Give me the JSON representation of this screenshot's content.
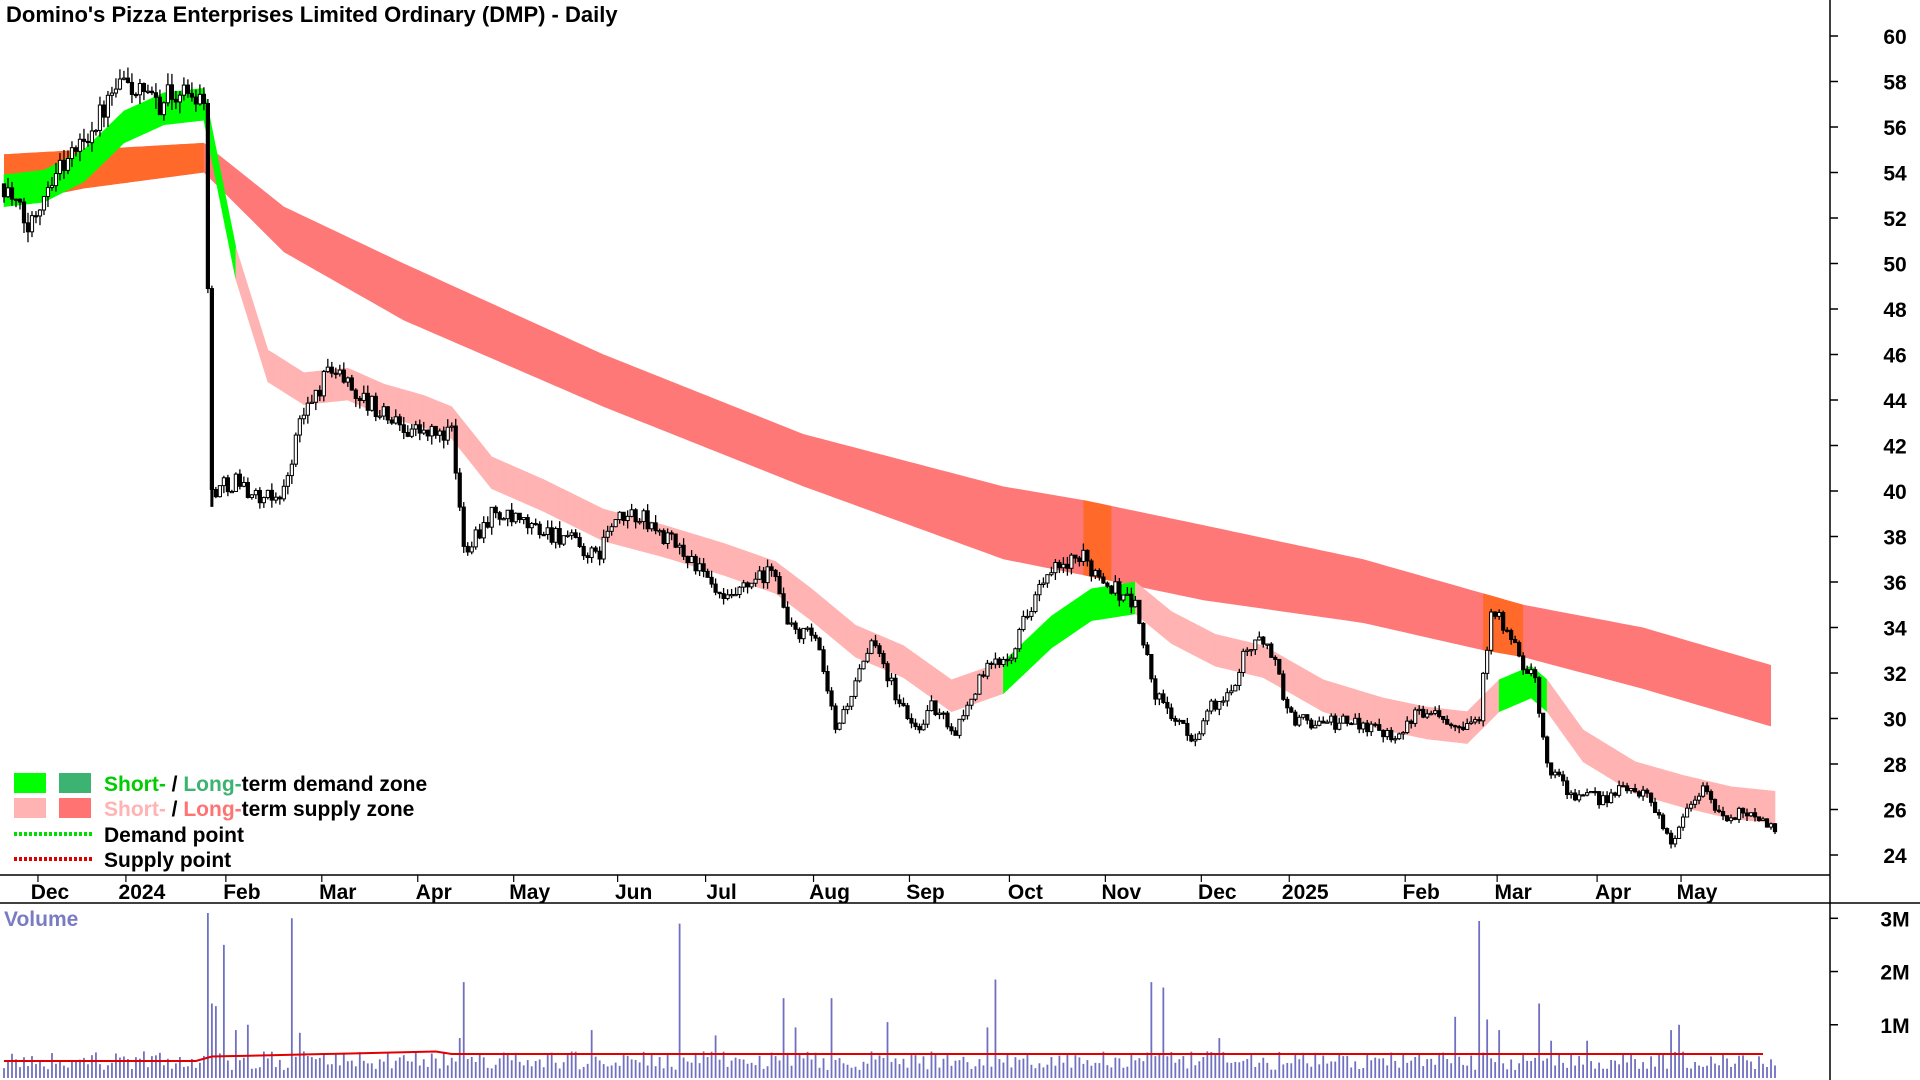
{
  "chart_data": {
    "type": "candlestick",
    "title": "Domino's Pizza Enterprises Limited Ordinary (DMP) - Daily",
    "y_axis": {
      "ticks": [
        24,
        26,
        28,
        30,
        32,
        34,
        36,
        38,
        40,
        42,
        44,
        46,
        48,
        50,
        52,
        54,
        56,
        58,
        60
      ],
      "range": [
        23,
        61
      ],
      "position": "right"
    },
    "x_axis": {
      "ticks": [
        "Dec",
        "2024",
        "Feb",
        "Mar",
        "Apr",
        "May",
        "Jun",
        "Jul",
        "Aug",
        "Sep",
        "Oct",
        "Nov",
        "Dec",
        "2025",
        "Feb",
        "Mar",
        "Apr",
        "May"
      ]
    },
    "price_path": [
      {
        "d": 0,
        "p": 53.5
      },
      {
        "d": 6,
        "p": 51.5
      },
      {
        "d": 12,
        "p": 54
      },
      {
        "d": 18,
        "p": 55
      },
      {
        "d": 24,
        "p": 56.5
      },
      {
        "d": 30,
        "p": 58
      },
      {
        "d": 37,
        "p": 57
      },
      {
        "d": 43,
        "p": 57.5
      },
      {
        "d": 50,
        "p": 57.5
      },
      {
        "d": 52,
        "p": 40
      },
      {
        "d": 58,
        "p": 40.5
      },
      {
        "d": 65,
        "p": 39.5
      },
      {
        "d": 70,
        "p": 40
      },
      {
        "d": 74,
        "p": 43
      },
      {
        "d": 82,
        "p": 45.5
      },
      {
        "d": 90,
        "p": 44
      },
      {
        "d": 98,
        "p": 43
      },
      {
        "d": 106,
        "p": 42.5
      },
      {
        "d": 112,
        "p": 42.5
      },
      {
        "d": 115,
        "p": 37.5
      },
      {
        "d": 122,
        "p": 39
      },
      {
        "d": 130,
        "p": 38.5
      },
      {
        "d": 140,
        "p": 38
      },
      {
        "d": 148,
        "p": 37
      },
      {
        "d": 152,
        "p": 38.5
      },
      {
        "d": 158,
        "p": 39
      },
      {
        "d": 165,
        "p": 38
      },
      {
        "d": 172,
        "p": 37
      },
      {
        "d": 180,
        "p": 35
      },
      {
        "d": 188,
        "p": 36
      },
      {
        "d": 193,
        "p": 36.5
      },
      {
        "d": 196,
        "p": 34
      },
      {
        "d": 203,
        "p": 33.5
      },
      {
        "d": 208,
        "p": 29.5
      },
      {
        "d": 213,
        "p": 31.5
      },
      {
        "d": 218,
        "p": 33.5
      },
      {
        "d": 223,
        "p": 31
      },
      {
        "d": 228,
        "p": 29.5
      },
      {
        "d": 232,
        "p": 30.5
      },
      {
        "d": 238,
        "p": 29.5
      },
      {
        "d": 245,
        "p": 32
      },
      {
        "d": 252,
        "p": 33
      },
      {
        "d": 258,
        "p": 35.5
      },
      {
        "d": 263,
        "p": 36.5
      },
      {
        "d": 270,
        "p": 37
      },
      {
        "d": 276,
        "p": 36
      },
      {
        "d": 283,
        "p": 35
      },
      {
        "d": 288,
        "p": 31
      },
      {
        "d": 293,
        "p": 30
      },
      {
        "d": 297,
        "p": 29
      },
      {
        "d": 302,
        "p": 30.5
      },
      {
        "d": 307,
        "p": 31
      },
      {
        "d": 310,
        "p": 33
      },
      {
        "d": 316,
        "p": 33.5
      },
      {
        "d": 322,
        "p": 30
      },
      {
        "d": 330,
        "p": 29.8
      },
      {
        "d": 340,
        "p": 29.8
      },
      {
        "d": 348,
        "p": 29.3
      },
      {
        "d": 356,
        "p": 30.5
      },
      {
        "d": 364,
        "p": 29.8
      },
      {
        "d": 369,
        "p": 30
      },
      {
        "d": 372,
        "p": 35
      },
      {
        "d": 378,
        "p": 33
      },
      {
        "d": 383,
        "p": 31.5
      },
      {
        "d": 386,
        "p": 28
      },
      {
        "d": 393,
        "p": 26.5
      },
      {
        "d": 400,
        "p": 26.5
      },
      {
        "d": 407,
        "p": 27
      },
      {
        "d": 412,
        "p": 26.5
      },
      {
        "d": 417,
        "p": 24.5
      },
      {
        "d": 421,
        "p": 26
      },
      {
        "d": 425,
        "p": 27
      },
      {
        "d": 430,
        "p": 25.5
      },
      {
        "d": 437,
        "p": 26
      },
      {
        "d": 443,
        "p": 25
      }
    ],
    "short_term_zone": [
      {
        "d": 0,
        "p": 53.2,
        "z": "demand"
      },
      {
        "d": 10,
        "p": 53.4,
        "z": "demand"
      },
      {
        "d": 20,
        "p": 54.3,
        "z": "demand"
      },
      {
        "d": 30,
        "p": 56,
        "z": "demand"
      },
      {
        "d": 40,
        "p": 56.8,
        "z": "demand"
      },
      {
        "d": 50,
        "p": 57,
        "z": "demand"
      },
      {
        "d": 58,
        "p": 50,
        "z": "supply"
      },
      {
        "d": 66,
        "p": 45.5,
        "z": "supply"
      },
      {
        "d": 75,
        "p": 44.5,
        "z": "supply"
      },
      {
        "d": 86,
        "p": 44.7,
        "z": "supply"
      },
      {
        "d": 95,
        "p": 44,
        "z": "supply"
      },
      {
        "d": 105,
        "p": 43.5,
        "z": "supply"
      },
      {
        "d": 112,
        "p": 43,
        "z": "supply"
      },
      {
        "d": 122,
        "p": 40.8,
        "z": "supply"
      },
      {
        "d": 135,
        "p": 39.8,
        "z": "supply"
      },
      {
        "d": 150,
        "p": 38.5,
        "z": "supply"
      },
      {
        "d": 165,
        "p": 37.8,
        "z": "supply"
      },
      {
        "d": 180,
        "p": 37,
        "z": "supply"
      },
      {
        "d": 193,
        "p": 36.2,
        "z": "supply"
      },
      {
        "d": 202,
        "p": 35,
        "z": "supply"
      },
      {
        "d": 213,
        "p": 33.4,
        "z": "supply"
      },
      {
        "d": 225,
        "p": 32.5,
        "z": "supply"
      },
      {
        "d": 237,
        "p": 31,
        "z": "supply"
      },
      {
        "d": 250,
        "p": 31.8,
        "z": "demand"
      },
      {
        "d": 262,
        "p": 33.8,
        "z": "demand"
      },
      {
        "d": 272,
        "p": 35,
        "z": "demand"
      },
      {
        "d": 283,
        "p": 35.3,
        "z": "supply"
      },
      {
        "d": 292,
        "p": 34,
        "z": "supply"
      },
      {
        "d": 303,
        "p": 33,
        "z": "supply"
      },
      {
        "d": 315,
        "p": 32.5,
        "z": "supply"
      },
      {
        "d": 330,
        "p": 31,
        "z": "supply"
      },
      {
        "d": 345,
        "p": 30.2,
        "z": "supply"
      },
      {
        "d": 356,
        "p": 29.8,
        "z": "supply"
      },
      {
        "d": 366,
        "p": 29.6,
        "z": "supply"
      },
      {
        "d": 374,
        "p": 31,
        "z": "demand"
      },
      {
        "d": 382,
        "p": 31.6,
        "z": "demand"
      },
      {
        "d": 386,
        "p": 31,
        "z": "supply"
      },
      {
        "d": 395,
        "p": 28.8,
        "z": "supply"
      },
      {
        "d": 408,
        "p": 27.4,
        "z": "supply"
      },
      {
        "d": 420,
        "p": 26.8,
        "z": "supply"
      },
      {
        "d": 432,
        "p": 26.3,
        "z": "supply"
      },
      {
        "d": 443,
        "p": 26.1,
        "z": "supply"
      }
    ],
    "short_term_zone_width": 0.7,
    "long_term_zone": [
      {
        "d": 0,
        "top": 54.8,
        "bot": 52.6
      },
      {
        "d": 20,
        "top": 55.0,
        "bot": 53.3
      },
      {
        "d": 50,
        "top": 55.3,
        "bot": 54.0
      },
      {
        "d": 70,
        "top": 52.5,
        "bot": 50.5
      },
      {
        "d": 100,
        "top": 50.0,
        "bot": 47.5
      },
      {
        "d": 150,
        "top": 46.0,
        "bot": 43.7
      },
      {
        "d": 200,
        "top": 42.5,
        "bot": 40.2
      },
      {
        "d": 250,
        "top": 40.2,
        "bot": 37.0
      },
      {
        "d": 270,
        "top": 39.6,
        "bot": 36.3
      },
      {
        "d": 300,
        "top": 38.5,
        "bot": 35.2
      },
      {
        "d": 340,
        "top": 37.0,
        "bot": 34.2
      },
      {
        "d": 370,
        "top": 35.5,
        "bot": 33.0
      },
      {
        "d": 380,
        "top": 35.0,
        "bot": 32.7
      },
      {
        "d": 410,
        "top": 34.0,
        "bot": 31.3
      },
      {
        "d": 443,
        "top": 32.3,
        "bot": 29.6
      }
    ],
    "long_term_highlights": [
      {
        "from": 0,
        "to": 50,
        "color": "#ff6a2a"
      },
      {
        "from": 270,
        "to": 277,
        "color": "#ff6a2a"
      },
      {
        "from": 370,
        "to": 380,
        "color": "#ff6a2a"
      }
    ],
    "volume": {
      "title": "Volume",
      "ticks": [
        "1M",
        "2M",
        "3M"
      ],
      "tick_values": [
        1,
        2,
        3
      ],
      "range": [
        0,
        3.25
      ],
      "average_level": 0.4,
      "spikes": [
        {
          "d": 51,
          "v": 3.1
        },
        {
          "d": 52,
          "v": 1.4
        },
        {
          "d": 53,
          "v": 1.35
        },
        {
          "d": 55,
          "v": 2.5
        },
        {
          "d": 58,
          "v": 0.9
        },
        {
          "d": 61,
          "v": 1.0
        },
        {
          "d": 72,
          "v": 3.0
        },
        {
          "d": 74,
          "v": 0.85
        },
        {
          "d": 115,
          "v": 1.8
        },
        {
          "d": 114,
          "v": 0.75
        },
        {
          "d": 147,
          "v": 0.9
        },
        {
          "d": 169,
          "v": 2.9
        },
        {
          "d": 178,
          "v": 0.8
        },
        {
          "d": 195,
          "v": 1.5
        },
        {
          "d": 198,
          "v": 0.95
        },
        {
          "d": 207,
          "v": 1.5
        },
        {
          "d": 221,
          "v": 1.05
        },
        {
          "d": 246,
          "v": 0.95
        },
        {
          "d": 248,
          "v": 1.85
        },
        {
          "d": 287,
          "v": 1.8
        },
        {
          "d": 290,
          "v": 1.7
        },
        {
          "d": 304,
          "v": 0.75
        },
        {
          "d": 363,
          "v": 1.15
        },
        {
          "d": 369,
          "v": 2.95
        },
        {
          "d": 371,
          "v": 1.1
        },
        {
          "d": 374,
          "v": 0.9
        },
        {
          "d": 384,
          "v": 1.4
        },
        {
          "d": 387,
          "v": 0.7
        },
        {
          "d": 396,
          "v": 0.7
        },
        {
          "d": 417,
          "v": 0.9
        },
        {
          "d": 419,
          "v": 1.0
        }
      ]
    },
    "legend": {
      "position": "bottom-left",
      "items": [
        {
          "label_a": "Short-",
          "sep": " / ",
          "label_b": "Long-",
          "label_c": "term demand zone",
          "color_a": "#00ff00",
          "color_b": "#3cb371",
          "text_color_a": "#00cc00",
          "text_color_b": "#3cb371"
        },
        {
          "label_a": "Short-",
          "sep": " / ",
          "label_b": "Long-",
          "label_c": "term supply zone",
          "color_a": "#ffb3b3",
          "color_b": "#ff7373",
          "text_color_a": "#ffb3b3",
          "text_color_b": "#ff7373"
        },
        {
          "label": "Demand point",
          "color": "#00dd00"
        },
        {
          "label": "Supply point",
          "color": "#e00000"
        }
      ]
    },
    "colors": {
      "short_demand": "#00ff00",
      "short_supply": "#ffb3b3",
      "long_supply": "#ff7878",
      "long_highlight": "#ff6a2a",
      "candle": "#000000",
      "volume_bar": "#7070c0",
      "volume_avg": "#e00000"
    }
  }
}
